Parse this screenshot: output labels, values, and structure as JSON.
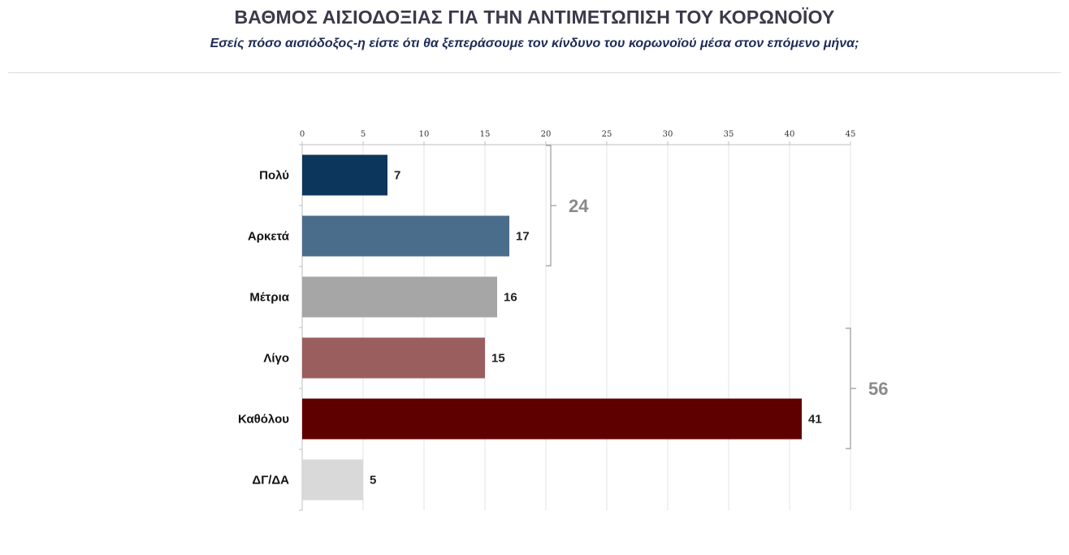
{
  "header": {
    "title": "ΒΑΘΜΟΣ ΑΙΣΙΟΔΟΞΙΑΣ ΓΙΑ ΤΗΝ ΑΝΤΙΜΕΤΩΠΙΣΗ ΤΟΥ ΚΟΡΩΝΟΪΟΥ",
    "subtitle": "Εσείς πόσο αισιόδοξος-η είστε ότι θα ξεπεράσουμε τον κίνδυνο του κορωνοϊού μέσα στον επόμενο μήνα;"
  },
  "chart_data": {
    "type": "bar",
    "orientation": "horizontal",
    "title": "ΒΑΘΜΟΣ ΑΙΣΙΟΔΟΞΙΑΣ ΓΙΑ ΤΗΝ ΑΝΤΙΜΕΤΩΠΙΣΗ ΤΟΥ ΚΟΡΩΝΟΪΟΥ",
    "subtitle": "Εσείς πόσο αισιόδοξος-η είστε ότι θα ξεπεράσουμε τον κίνδυνο του κορωνοϊού μέσα στον επόμενο μήνα;",
    "categories": [
      "Πολύ",
      "Αρκετά",
      "Μέτρια",
      "Λίγο",
      "Καθόλου",
      "ΔΓ/ΔΑ"
    ],
    "values": [
      7,
      17,
      16,
      15,
      41,
      5
    ],
    "colors": [
      "#0d365c",
      "#4b6d8c",
      "#a6a6a6",
      "#9a5e5e",
      "#5e0000",
      "#d9d9d9"
    ],
    "xlim": [
      0,
      45
    ],
    "xticks": [
      0,
      5,
      10,
      15,
      20,
      25,
      30,
      35,
      40,
      45
    ],
    "xaxis_position": "top",
    "grid": true,
    "xlabel": "",
    "ylabel": "",
    "groups": [
      {
        "label": "24",
        "from": 0,
        "to": 1,
        "color": "#8a8a8a"
      },
      {
        "label": "56",
        "from": 3,
        "to": 4,
        "color": "#8a8a8a"
      }
    ]
  }
}
